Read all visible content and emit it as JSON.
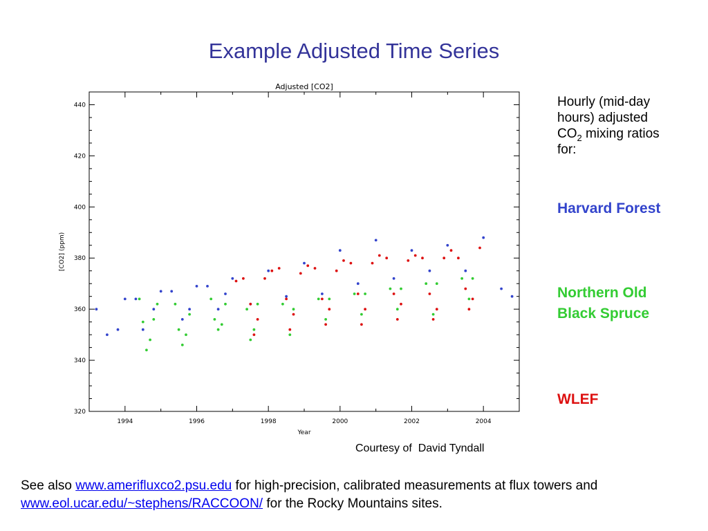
{
  "slide": {
    "title": "Example Adjusted Time Series",
    "side_intro_part1": "Hourly (mid-day hours) adjusted CO",
    "side_intro_sub": "2",
    "side_intro_part2": " mixing ratios for:",
    "courtesy": "Courtesy of  David Tyndall",
    "footer": {
      "pre1": "See also ",
      "link1": "www.amerifluxco2.psu.edu",
      "mid": " for high-precision, calibrated measurements at flux towers and ",
      "link2": "www.eol.ucar.edu/~stephens/RACCOON/",
      "post": " for the Rocky Mountains sites."
    }
  },
  "chart_data": {
    "type": "scatter",
    "title": "Adjusted [CO2]",
    "xlabel": "Year",
    "ylabel": "[CO2] (ppm)",
    "xlim": [
      1993.0,
      2005.0
    ],
    "ylim": [
      320,
      445
    ],
    "xticks": [
      1994,
      1996,
      1998,
      2000,
      2002,
      2004
    ],
    "yticks": [
      320,
      340,
      360,
      380,
      400,
      420,
      440
    ],
    "grid": false,
    "legend_position": "right of plot",
    "series": [
      {
        "name": "Harvard Forest",
        "color": "#3344cc",
        "x": [
          1993.2,
          1993.5,
          1993.8,
          1994.0,
          1994.3,
          1994.5,
          1994.8,
          1995.0,
          1995.3,
          1995.6,
          1995.8,
          1996.0,
          1996.3,
          1996.6,
          1996.8,
          1997.0,
          1997.5,
          1998.0,
          1998.5,
          1999.0,
          1999.5,
          2000.0,
          2000.5,
          2001.0,
          2001.5,
          2002.0,
          2002.5,
          2003.0,
          2003.5,
          2004.0,
          2004.5,
          2004.8
        ],
        "y": [
          360,
          350,
          352,
          364,
          364,
          352,
          360,
          367,
          367,
          356,
          360,
          369,
          369,
          360,
          366,
          372,
          362,
          375,
          365,
          378,
          366,
          383,
          370,
          387,
          372,
          383,
          375,
          385,
          375,
          388,
          368,
          365
        ]
      },
      {
        "name": "Northern Old Black Spruce",
        "color": "#33cc33",
        "x": [
          1994.4,
          1994.5,
          1994.6,
          1994.7,
          1994.8,
          1994.9,
          1995.4,
          1995.5,
          1995.6,
          1995.7,
          1995.8,
          1996.4,
          1996.5,
          1996.6,
          1996.7,
          1996.8,
          1997.4,
          1997.5,
          1997.6,
          1997.7,
          1998.4,
          1998.6,
          1998.7,
          1999.4,
          1999.6,
          1999.7,
          2000.4,
          2000.6,
          2000.7,
          2001.4,
          2001.6,
          2001.7,
          2002.4,
          2002.6,
          2002.7,
          2003.4,
          2003.6,
          2003.7
        ],
        "y": [
          364,
          355,
          344,
          348,
          356,
          362,
          362,
          352,
          346,
          350,
          358,
          364,
          356,
          352,
          354,
          362,
          360,
          348,
          352,
          362,
          362,
          350,
          360,
          364,
          356,
          364,
          366,
          358,
          366,
          368,
          360,
          368,
          370,
          358,
          370,
          372,
          364,
          372
        ]
      },
      {
        "name": "WLEF",
        "color": "#dd1111",
        "x": [
          1997.1,
          1997.3,
          1997.5,
          1997.6,
          1997.7,
          1997.9,
          1998.1,
          1998.3,
          1998.5,
          1998.6,
          1998.7,
          1998.9,
          1999.1,
          1999.3,
          1999.5,
          1999.6,
          1999.7,
          1999.9,
          2000.1,
          2000.3,
          2000.5,
          2000.6,
          2000.7,
          2000.9,
          2001.1,
          2001.3,
          2001.5,
          2001.6,
          2001.7,
          2001.9,
          2002.1,
          2002.3,
          2002.5,
          2002.6,
          2002.7,
          2002.9,
          2003.1,
          2003.3,
          2003.5,
          2003.6,
          2003.7,
          2003.9
        ],
        "y": [
          371,
          372,
          362,
          350,
          356,
          372,
          375,
          376,
          364,
          352,
          358,
          374,
          377,
          376,
          364,
          354,
          360,
          375,
          379,
          378,
          366,
          354,
          360,
          378,
          381,
          380,
          366,
          356,
          362,
          379,
          381,
          380,
          366,
          356,
          360,
          380,
          383,
          380,
          368,
          360,
          364,
          384
        ]
      }
    ]
  }
}
